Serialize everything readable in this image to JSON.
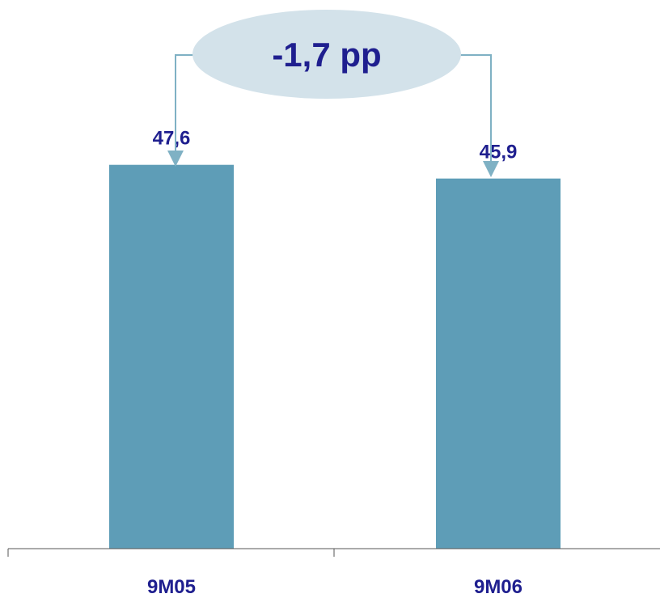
{
  "chart_data": {
    "type": "bar",
    "categories": [
      "9M05",
      "9M06"
    ],
    "values": [
      47.6,
      45.9
    ],
    "value_labels": [
      "47,6",
      "45,9"
    ],
    "title": "",
    "xlabel": "",
    "ylabel": "",
    "ylim": [
      0,
      56
    ],
    "grid": false,
    "annotation": {
      "text": "-1,7 pp"
    },
    "colors": {
      "bar": "#5e9db7",
      "text": "#1f1f8f",
      "connector": "#7fb1c4",
      "ellipse": "#d3e2ea"
    }
  }
}
